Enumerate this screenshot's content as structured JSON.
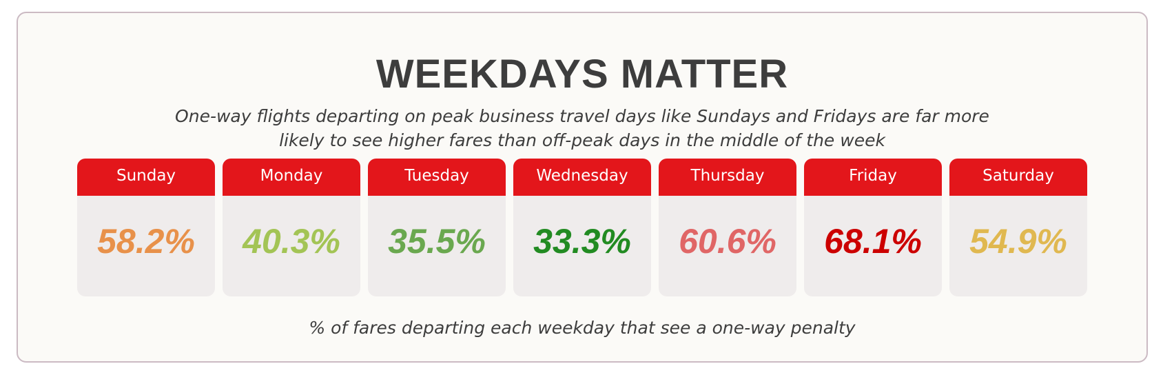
{
  "title": "WEEKDAYS MATTER",
  "subtitle_lines": [
    "One-way flights departing on peak business travel days like Sundays and Fridays are far more",
    "likely to see higher fares than off-peak days in the middle of the week"
  ],
  "cards": [
    {
      "day": "Sunday",
      "value": "58.2%",
      "color": "#e8914a"
    },
    {
      "day": "Monday",
      "value": "40.3%",
      "color": "#a3c455"
    },
    {
      "day": "Tuesday",
      "value": "35.5%",
      "color": "#6aa84f"
    },
    {
      "day": "Wednesday",
      "value": "33.3%",
      "color": "#228b22"
    },
    {
      "day": "Thursday",
      "value": "60.6%",
      "color": "#e06666"
    },
    {
      "day": "Friday",
      "value": "68.1%",
      "color": "#cc0000"
    },
    {
      "day": "Saturday",
      "value": "54.9%",
      "color": "#e0b850"
    }
  ],
  "footnote": "% of fares departing each weekday that see a one-way penalty"
}
